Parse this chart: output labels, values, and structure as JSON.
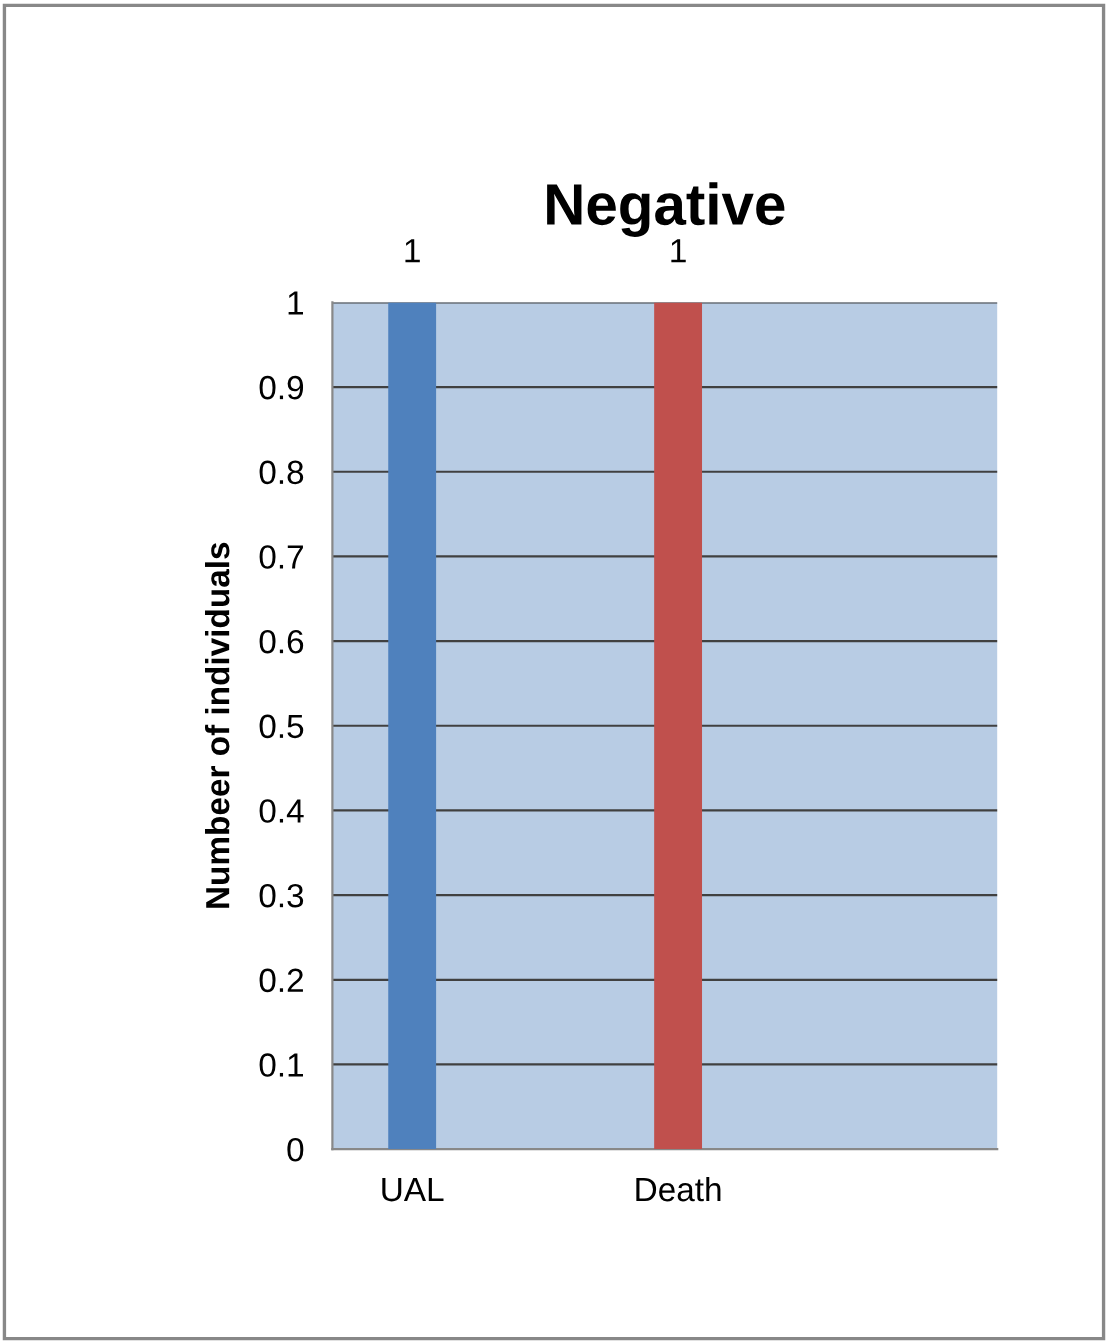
{
  "chart_data": {
    "type": "bar",
    "title": "Negative",
    "ylabel": "Numbeer of individuals",
    "categories": [
      "UAL",
      "Death"
    ],
    "values": [
      1,
      1
    ],
    "colors": [
      "#4f81bd",
      "#c0504d"
    ],
    "ylim": [
      0,
      1
    ],
    "yticks": [
      0,
      0.1,
      0.2,
      0.3,
      0.4,
      0.5,
      0.6,
      0.7,
      0.8,
      0.9,
      1
    ],
    "grid": "y",
    "data_labels": true,
    "legend": false
  }
}
